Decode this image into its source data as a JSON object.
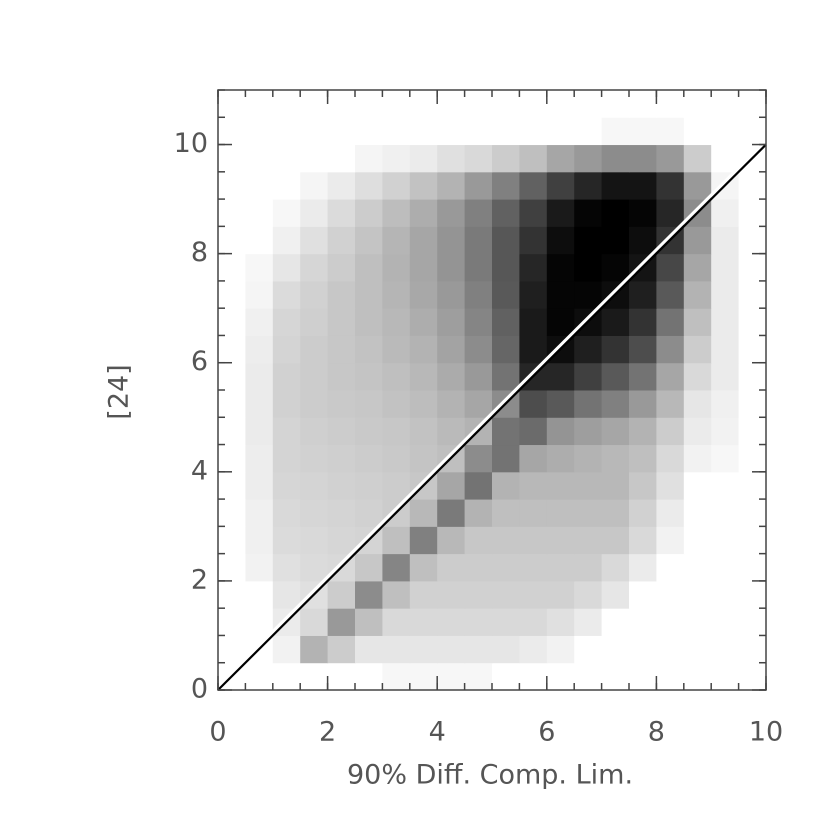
{
  "chart_data": {
    "type": "density",
    "xlabel": "90% Diff. Comp. Lim.",
    "ylabel": "[24]",
    "xlim": [
      0,
      10
    ],
    "ylim": [
      0,
      11
    ],
    "xticks": [
      0,
      2,
      4,
      6,
      8,
      10
    ],
    "yticks": [
      0,
      2,
      4,
      6,
      8,
      10
    ],
    "x_bins": [
      0,
      0.5,
      1,
      1.5,
      2,
      2.5,
      3,
      3.5,
      4,
      4.5,
      5,
      5.5,
      6,
      6.5,
      7,
      7.5,
      8,
      8.5,
      9,
      9.5,
      10
    ],
    "y_bins": [
      0,
      0.5,
      1,
      1.5,
      2,
      2.5,
      3,
      3.5,
      4,
      4.5,
      5,
      5.5,
      6,
      6.5,
      7,
      7.5,
      8,
      8.5,
      9,
      9.5,
      10,
      10.5,
      11
    ],
    "values": [
      [
        0,
        0,
        0,
        0,
        0,
        0,
        3,
        3,
        3,
        3,
        0,
        0,
        0,
        0,
        0,
        0,
        0,
        0,
        0,
        0
      ],
      [
        0,
        0,
        5,
        30,
        20,
        10,
        10,
        10,
        10,
        10,
        10,
        8,
        5,
        0,
        0,
        0,
        0,
        0,
        0,
        0
      ],
      [
        0,
        0,
        8,
        15,
        40,
        25,
        15,
        15,
        15,
        15,
        15,
        15,
        12,
        8,
        0,
        0,
        0,
        0,
        0,
        0
      ],
      [
        0,
        0,
        10,
        12,
        20,
        45,
        25,
        18,
        18,
        18,
        18,
        18,
        18,
        15,
        10,
        0,
        0,
        0,
        0,
        0
      ],
      [
        0,
        5,
        12,
        14,
        15,
        22,
        48,
        25,
        20,
        20,
        20,
        20,
        20,
        20,
        15,
        8,
        0,
        0,
        0,
        0
      ],
      [
        0,
        6,
        14,
        15,
        16,
        17,
        25,
        50,
        28,
        22,
        22,
        22,
        22,
        22,
        22,
        15,
        5,
        0,
        0,
        0
      ],
      [
        0,
        6,
        15,
        16,
        17,
        18,
        20,
        28,
        52,
        30,
        25,
        25,
        25,
        25,
        25,
        18,
        8,
        0,
        0,
        0
      ],
      [
        0,
        7,
        16,
        17,
        18,
        19,
        20,
        22,
        35,
        55,
        30,
        28,
        28,
        28,
        28,
        22,
        12,
        0,
        0,
        0
      ],
      [
        0,
        7,
        17,
        18,
        19,
        20,
        21,
        23,
        25,
        45,
        55,
        35,
        32,
        30,
        28,
        25,
        15,
        5,
        3,
        0
      ],
      [
        0,
        8,
        17,
        19,
        20,
        21,
        22,
        24,
        27,
        30,
        55,
        58,
        42,
        38,
        35,
        30,
        20,
        8,
        5,
        0
      ],
      [
        0,
        8,
        18,
        20,
        21,
        22,
        24,
        26,
        30,
        35,
        45,
        70,
        65,
        55,
        50,
        40,
        28,
        10,
        6,
        0
      ],
      [
        0,
        8,
        18,
        20,
        22,
        23,
        25,
        28,
        33,
        40,
        55,
        85,
        85,
        75,
        65,
        55,
        35,
        15,
        8,
        0
      ],
      [
        0,
        7,
        17,
        20,
        22,
        24,
        27,
        30,
        36,
        45,
        60,
        90,
        95,
        88,
        80,
        70,
        45,
        20,
        8,
        0
      ],
      [
        0,
        6,
        16,
        19,
        22,
        25,
        28,
        32,
        38,
        48,
        62,
        90,
        98,
        95,
        90,
        80,
        55,
        25,
        8,
        0
      ],
      [
        0,
        4,
        14,
        18,
        22,
        25,
        29,
        34,
        40,
        50,
        65,
        88,
        98,
        98,
        95,
        88,
        65,
        30,
        8,
        0
      ],
      [
        0,
        3,
        10,
        16,
        20,
        25,
        30,
        35,
        42,
        52,
        66,
        85,
        98,
        100,
        98,
        92,
        72,
        35,
        8,
        0
      ],
      [
        0,
        0,
        6,
        12,
        18,
        23,
        29,
        35,
        42,
        52,
        66,
        80,
        95,
        100,
        100,
        95,
        80,
        40,
        8,
        0
      ],
      [
        0,
        0,
        3,
        8,
        14,
        20,
        26,
        32,
        40,
        50,
        62,
        75,
        90,
        98,
        100,
        98,
        85,
        45,
        6,
        0
      ],
      [
        0,
        0,
        0,
        4,
        8,
        13,
        18,
        24,
        30,
        40,
        50,
        62,
        75,
        85,
        92,
        92,
        80,
        40,
        4,
        0
      ],
      [
        0,
        0,
        0,
        0,
        0,
        4,
        6,
        8,
        12,
        15,
        20,
        25,
        35,
        40,
        45,
        45,
        40,
        20,
        0,
        0
      ],
      [
        0,
        0,
        0,
        0,
        0,
        0,
        0,
        0,
        0,
        0,
        0,
        0,
        0,
        0,
        3,
        3,
        3,
        0,
        0,
        0
      ],
      [
        0,
        0,
        0,
        0,
        0,
        0,
        0,
        0,
        0,
        0,
        0,
        0,
        0,
        0,
        0,
        0,
        0,
        0,
        0,
        0
      ]
    ],
    "reference_line": {
      "x": [
        0,
        10
      ],
      "y": [
        0,
        10
      ]
    }
  }
}
